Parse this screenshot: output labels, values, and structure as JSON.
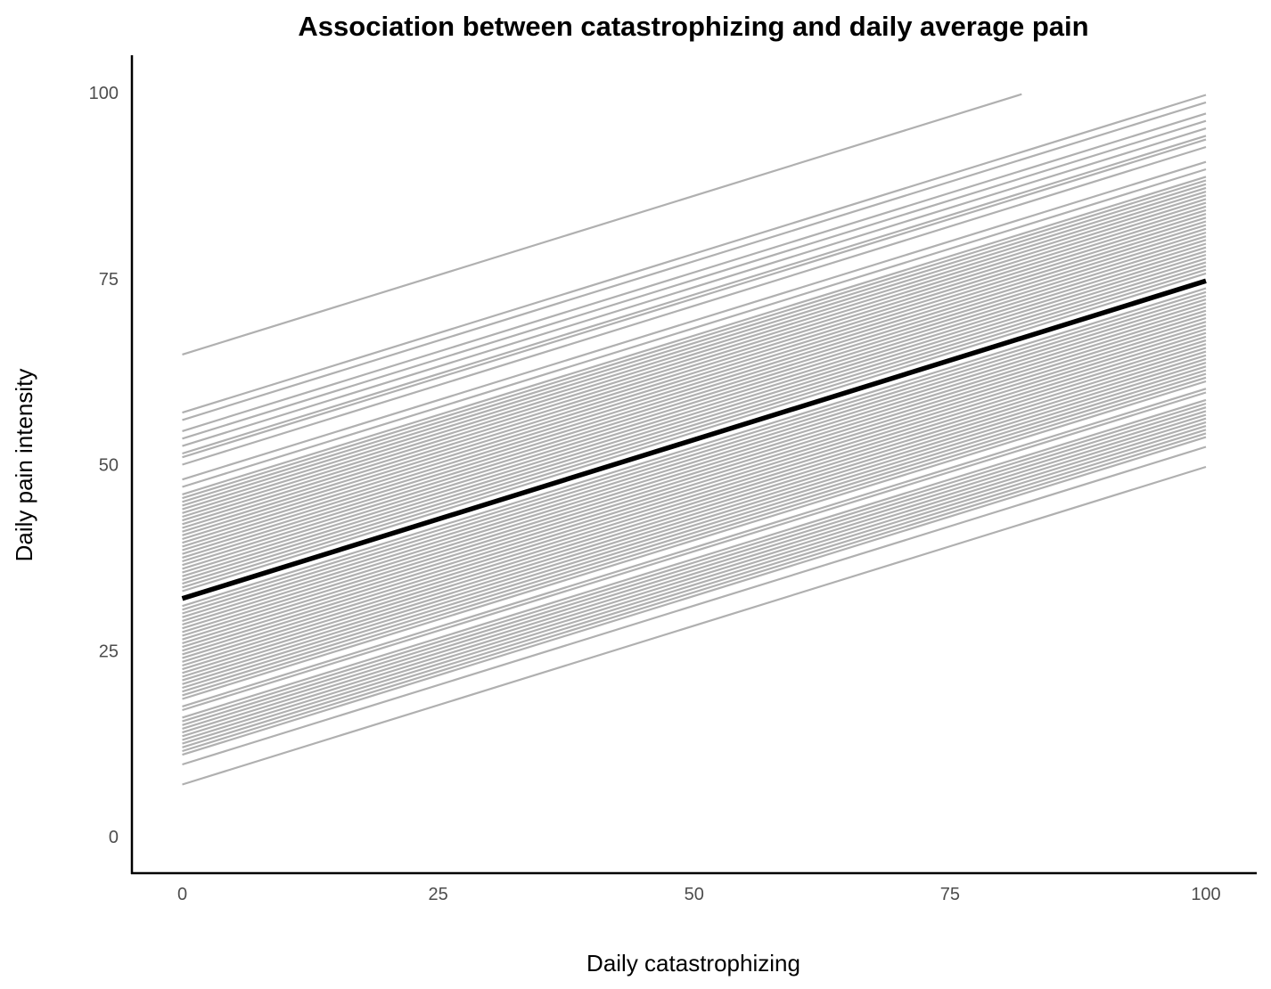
{
  "chart_data": {
    "type": "line",
    "title": "Association between catastrophizing and daily average pain",
    "xlabel": "Daily catastrophizing",
    "ylabel": "Daily pain intensity",
    "xlim": [
      -5,
      105
    ],
    "ylim": [
      -5,
      105
    ],
    "xticks": [
      0,
      25,
      50,
      75,
      100
    ],
    "yticks": [
      0,
      25,
      50,
      75,
      100
    ],
    "xtick_labels": [
      "0",
      "25",
      "50",
      "75",
      "100"
    ],
    "ytick_labels": [
      "0",
      "25",
      "50",
      "75",
      "100"
    ],
    "grid": false,
    "legend": "none",
    "colors": {
      "individual": "#b0b0b0",
      "average": "#000000"
    },
    "average_line": {
      "x": [
        0,
        100
      ],
      "y": [
        32,
        74.7
      ]
    },
    "individual_lines_slope": 0.427,
    "individual_line_intercepts": [
      64.8,
      57,
      56,
      54.5,
      53.5,
      52.5,
      51.5,
      51,
      50,
      48,
      47,
      46,
      45.5,
      45,
      44.5,
      44,
      43.5,
      43,
      42.5,
      42,
      41.5,
      41,
      40.5,
      40,
      39.5,
      39,
      38.5,
      38,
      37.5,
      37,
      36.5,
      36,
      35.5,
      35,
      34.5,
      34,
      33.5,
      33,
      31,
      30.5,
      30,
      29.5,
      29,
      28.5,
      28,
      27.5,
      27,
      26.5,
      26,
      25.5,
      25,
      24.5,
      24,
      23.5,
      23,
      22.5,
      22,
      21.5,
      21,
      20.5,
      20,
      19.5,
      19,
      18.5,
      17.5,
      17,
      16,
      15.5,
      15,
      14.5,
      14,
      13.5,
      13,
      12.5,
      12,
      11.5,
      11,
      9.7,
      7
    ],
    "truncated_line": {
      "x": [
        0,
        82
      ],
      "y": [
        64.8,
        99.8
      ]
    }
  }
}
